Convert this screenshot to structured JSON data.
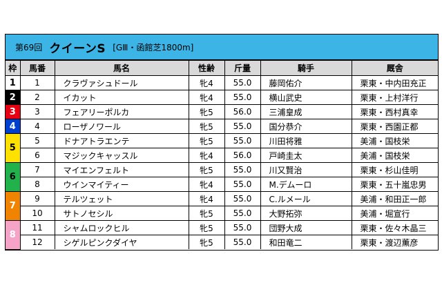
{
  "race": {
    "number": "第69回",
    "name": "クイーンS",
    "condition": "[GⅢ・函館芝1800m]"
  },
  "headers": [
    "枠",
    "馬番",
    "馬名",
    "性齢",
    "斤量",
    "騎手",
    "厩舎"
  ],
  "waku_colors": {
    "1": {
      "bg": "#ffffff",
      "fg": "#000000"
    },
    "2": {
      "bg": "#000000",
      "fg": "#ffffff"
    },
    "3": {
      "bg": "#e60012",
      "fg": "#ffffff"
    },
    "4": {
      "bg": "#0040d0",
      "fg": "#ffffff"
    },
    "5": {
      "bg": "#ffe100",
      "fg": "#000000"
    },
    "6": {
      "bg": "#22b24c",
      "fg": "#000000"
    },
    "7": {
      "bg": "#f08300",
      "fg": "#ffffff"
    },
    "8": {
      "bg": "#f5a3c7",
      "fg": "#ffffff"
    }
  },
  "rows": [
    {
      "waku": "1",
      "num": "1",
      "horse": "クラヴァシュドール",
      "sex_age": "牝4",
      "weight": "55.0",
      "jockey": "藤岡佑介",
      "stable": "栗東・中内田充正"
    },
    {
      "waku": "2",
      "num": "2",
      "horse": "イカット",
      "sex_age": "牝4",
      "weight": "55.0",
      "jockey": "横山武史",
      "stable": "栗東・上村洋行"
    },
    {
      "waku": "3",
      "num": "3",
      "horse": "フェアリーポルカ",
      "sex_age": "牝5",
      "weight": "56.0",
      "jockey": "三浦皇成",
      "stable": "栗東・西村真幸"
    },
    {
      "waku": "4",
      "num": "4",
      "horse": "ローザノワール",
      "sex_age": "牝5",
      "weight": "55.0",
      "jockey": "国分恭介",
      "stable": "栗東・西園正都"
    },
    {
      "waku": "5",
      "num": "5",
      "horse": "ドナアトラエンテ",
      "sex_age": "牝5",
      "weight": "55.0",
      "jockey": "川田将雅",
      "stable": "美浦・国枝栄"
    },
    {
      "waku": "5",
      "num": "6",
      "horse": "マジックキャッスル",
      "sex_age": "牝4",
      "weight": "56.0",
      "jockey": "戸崎圭太",
      "stable": "美浦・国枝栄"
    },
    {
      "waku": "6",
      "num": "7",
      "horse": "マイエンフェルト",
      "sex_age": "牝5",
      "weight": "55.0",
      "jockey": "川又賢治",
      "stable": "栗東・杉山佳明"
    },
    {
      "waku": "6",
      "num": "8",
      "horse": "ウインマイティー",
      "sex_age": "牝4",
      "weight": "55.0",
      "jockey": "M.デムーロ",
      "stable": "栗東・五十嵐忠男"
    },
    {
      "waku": "7",
      "num": "9",
      "horse": "テルツェット",
      "sex_age": "牝4",
      "weight": "55.0",
      "jockey": "C.ルメール",
      "stable": "美浦・和田正一郎"
    },
    {
      "waku": "7",
      "num": "10",
      "horse": "サトノセシル",
      "sex_age": "牝5",
      "weight": "55.0",
      "jockey": "大野拓弥",
      "stable": "美浦・堀宣行"
    },
    {
      "waku": "8",
      "num": "11",
      "horse": "シャムロックヒル",
      "sex_age": "牝5",
      "weight": "55.0",
      "jockey": "団野大成",
      "stable": "栗東・佐々木晶三"
    },
    {
      "waku": "8",
      "num": "12",
      "horse": "シゲルピンクダイヤ",
      "sex_age": "牝5",
      "weight": "55.0",
      "jockey": "和田竜二",
      "stable": "栗東・渡辺薫彦"
    }
  ]
}
